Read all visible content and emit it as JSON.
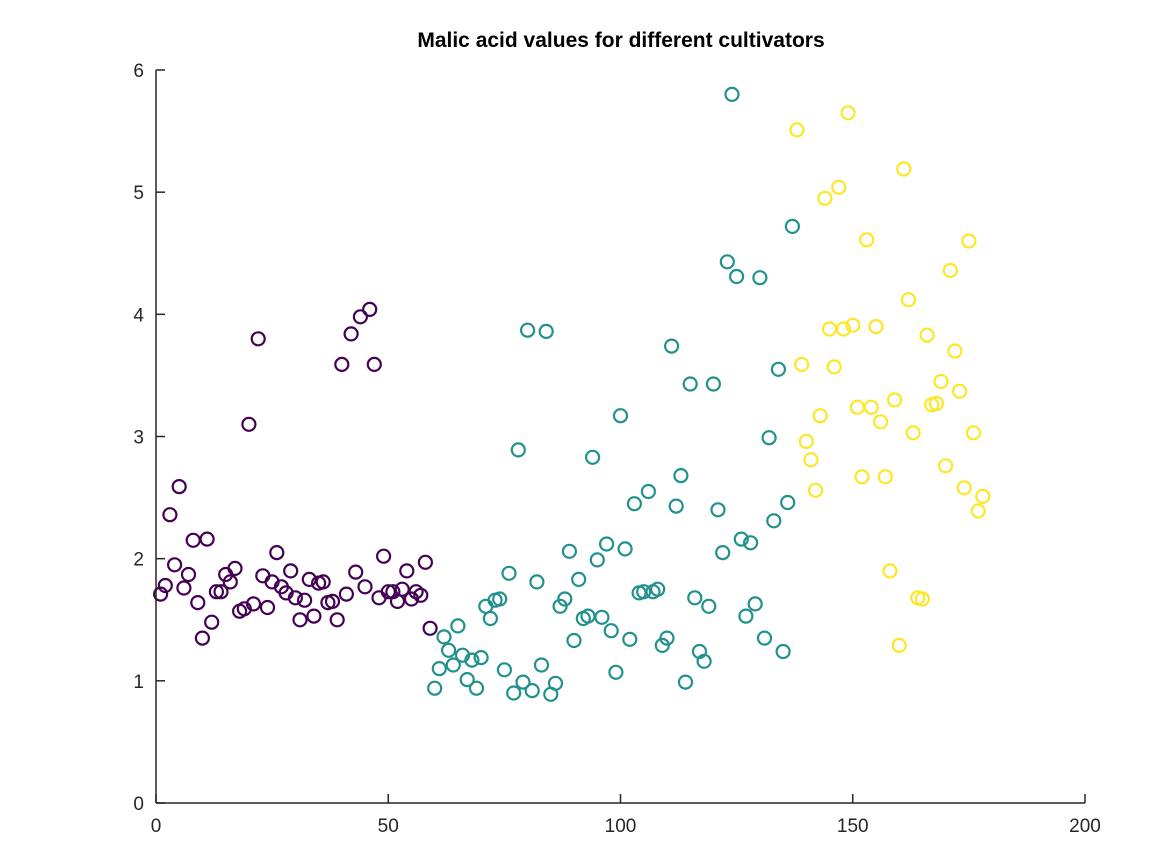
{
  "chart_data": {
    "type": "scatter",
    "title": "Malic acid values for different cultivators",
    "xlabel": "",
    "ylabel": "",
    "xlim": [
      0,
      200
    ],
    "ylim": [
      0,
      6
    ],
    "x_ticks": [
      "0",
      "50",
      "100",
      "150",
      "200"
    ],
    "y_ticks": [
      "0",
      "1",
      "2",
      "3",
      "4",
      "5",
      "6"
    ],
    "grid": false,
    "legend": "none",
    "marker": "open-circle",
    "colors": {
      "1": "#440154",
      "2": "#21918c",
      "3": "#fde725"
    },
    "points": [
      [
        1,
        1.71,
        1
      ],
      [
        2,
        1.78,
        1
      ],
      [
        3,
        2.36,
        1
      ],
      [
        4,
        1.95,
        1
      ],
      [
        5,
        2.59,
        1
      ],
      [
        6,
        1.76,
        1
      ],
      [
        7,
        1.87,
        1
      ],
      [
        8,
        2.15,
        1
      ],
      [
        9,
        1.64,
        1
      ],
      [
        10,
        1.35,
        1
      ],
      [
        11,
        2.16,
        1
      ],
      [
        12,
        1.48,
        1
      ],
      [
        13,
        1.73,
        1
      ],
      [
        14,
        1.73,
        1
      ],
      [
        15,
        1.87,
        1
      ],
      [
        16,
        1.81,
        1
      ],
      [
        17,
        1.92,
        1
      ],
      [
        18,
        1.57,
        1
      ],
      [
        19,
        1.59,
        1
      ],
      [
        20,
        3.1,
        1
      ],
      [
        21,
        1.63,
        1
      ],
      [
        22,
        3.8,
        1
      ],
      [
        23,
        1.86,
        1
      ],
      [
        24,
        1.6,
        1
      ],
      [
        25,
        1.81,
        1
      ],
      [
        26,
        2.05,
        1
      ],
      [
        27,
        1.77,
        1
      ],
      [
        28,
        1.72,
        1
      ],
      [
        29,
        1.9,
        1
      ],
      [
        30,
        1.68,
        1
      ],
      [
        31,
        1.5,
        1
      ],
      [
        32,
        1.66,
        1
      ],
      [
        33,
        1.83,
        1
      ],
      [
        34,
        1.53,
        1
      ],
      [
        35,
        1.8,
        1
      ],
      [
        36,
        1.81,
        1
      ],
      [
        37,
        1.64,
        1
      ],
      [
        38,
        1.65,
        1
      ],
      [
        39,
        1.5,
        1
      ],
      [
        40,
        3.59,
        1
      ],
      [
        41,
        1.71,
        1
      ],
      [
        42,
        3.84,
        1
      ],
      [
        43,
        1.89,
        1
      ],
      [
        44,
        3.98,
        1
      ],
      [
        45,
        1.77,
        1
      ],
      [
        46,
        4.04,
        1
      ],
      [
        47,
        3.59,
        1
      ],
      [
        48,
        1.68,
        1
      ],
      [
        49,
        2.02,
        1
      ],
      [
        50,
        1.73,
        1
      ],
      [
        51,
        1.73,
        1
      ],
      [
        52,
        1.65,
        1
      ],
      [
        53,
        1.75,
        1
      ],
      [
        54,
        1.9,
        1
      ],
      [
        55,
        1.67,
        1
      ],
      [
        56,
        1.73,
        1
      ],
      [
        57,
        1.7,
        1
      ],
      [
        58,
        1.97,
        1
      ],
      [
        59,
        1.43,
        1
      ],
      [
        60,
        0.94,
        2
      ],
      [
        61,
        1.1,
        2
      ],
      [
        62,
        1.36,
        2
      ],
      [
        63,
        1.25,
        2
      ],
      [
        64,
        1.13,
        2
      ],
      [
        65,
        1.45,
        2
      ],
      [
        66,
        1.21,
        2
      ],
      [
        67,
        1.01,
        2
      ],
      [
        68,
        1.17,
        2
      ],
      [
        69,
        0.94,
        2
      ],
      [
        70,
        1.19,
        2
      ],
      [
        71,
        1.61,
        2
      ],
      [
        72,
        1.51,
        2
      ],
      [
        73,
        1.66,
        2
      ],
      [
        74,
        1.67,
        2
      ],
      [
        75,
        1.09,
        2
      ],
      [
        76,
        1.88,
        2
      ],
      [
        77,
        0.9,
        2
      ],
      [
        78,
        2.89,
        2
      ],
      [
        79,
        0.99,
        2
      ],
      [
        80,
        3.87,
        2
      ],
      [
        81,
        0.92,
        2
      ],
      [
        82,
        1.81,
        2
      ],
      [
        83,
        1.13,
        2
      ],
      [
        84,
        3.86,
        2
      ],
      [
        85,
        0.89,
        2
      ],
      [
        86,
        0.98,
        2
      ],
      [
        87,
        1.61,
        2
      ],
      [
        88,
        1.67,
        2
      ],
      [
        89,
        2.06,
        2
      ],
      [
        90,
        1.33,
        2
      ],
      [
        91,
        1.83,
        2
      ],
      [
        92,
        1.51,
        2
      ],
      [
        93,
        1.53,
        2
      ],
      [
        94,
        2.83,
        2
      ],
      [
        95,
        1.99,
        2
      ],
      [
        96,
        1.52,
        2
      ],
      [
        97,
        2.12,
        2
      ],
      [
        98,
        1.41,
        2
      ],
      [
        99,
        1.07,
        2
      ],
      [
        100,
        3.17,
        2
      ],
      [
        101,
        2.08,
        2
      ],
      [
        102,
        1.34,
        2
      ],
      [
        103,
        2.45,
        2
      ],
      [
        104,
        1.72,
        2
      ],
      [
        105,
        1.73,
        2
      ],
      [
        106,
        2.55,
        2
      ],
      [
        107,
        1.73,
        2
      ],
      [
        108,
        1.75,
        2
      ],
      [
        109,
        1.29,
        2
      ],
      [
        110,
        1.35,
        2
      ],
      [
        111,
        3.74,
        2
      ],
      [
        112,
        2.43,
        2
      ],
      [
        113,
        2.68,
        2
      ],
      [
        114,
        0.99,
        2
      ],
      [
        115,
        3.43,
        2
      ],
      [
        116,
        1.68,
        2
      ],
      [
        117,
        1.24,
        2
      ],
      [
        118,
        1.16,
        2
      ],
      [
        119,
        1.61,
        2
      ],
      [
        120,
        3.43,
        2
      ],
      [
        121,
        2.4,
        2
      ],
      [
        122,
        2.05,
        2
      ],
      [
        123,
        4.43,
        2
      ],
      [
        124,
        5.8,
        2
      ],
      [
        125,
        4.31,
        2
      ],
      [
        126,
        2.16,
        2
      ],
      [
        127,
        1.53,
        2
      ],
      [
        128,
        2.13,
        2
      ],
      [
        129,
        1.63,
        2
      ],
      [
        130,
        4.3,
        2
      ],
      [
        131,
        1.35,
        2
      ],
      [
        132,
        2.99,
        2
      ],
      [
        133,
        2.31,
        2
      ],
      [
        134,
        3.55,
        2
      ],
      [
        135,
        1.24,
        2
      ],
      [
        136,
        2.46,
        2
      ],
      [
        137,
        4.72,
        2
      ],
      [
        138,
        5.51,
        3
      ],
      [
        139,
        3.59,
        3
      ],
      [
        140,
        2.96,
        3
      ],
      [
        141,
        2.81,
        3
      ],
      [
        142,
        2.56,
        3
      ],
      [
        143,
        3.17,
        3
      ],
      [
        144,
        4.95,
        3
      ],
      [
        145,
        3.88,
        3
      ],
      [
        146,
        3.57,
        3
      ],
      [
        147,
        5.04,
        3
      ],
      [
        148,
        3.88,
        3
      ],
      [
        149,
        5.65,
        3
      ],
      [
        150,
        3.91,
        3
      ],
      [
        151,
        3.24,
        3
      ],
      [
        152,
        2.67,
        3
      ],
      [
        153,
        4.61,
        3
      ],
      [
        154,
        3.24,
        3
      ],
      [
        155,
        3.9,
        3
      ],
      [
        156,
        3.12,
        3
      ],
      [
        157,
        2.67,
        3
      ],
      [
        158,
        1.9,
        3
      ],
      [
        159,
        3.3,
        3
      ],
      [
        160,
        1.29,
        3
      ],
      [
        161,
        5.19,
        3
      ],
      [
        162,
        4.12,
        3
      ],
      [
        163,
        3.03,
        3
      ],
      [
        164,
        1.68,
        3
      ],
      [
        165,
        1.67,
        3
      ],
      [
        166,
        3.83,
        3
      ],
      [
        167,
        3.26,
        3
      ],
      [
        168,
        3.27,
        3
      ],
      [
        169,
        3.45,
        3
      ],
      [
        170,
        2.76,
        3
      ],
      [
        171,
        4.36,
        3
      ],
      [
        172,
        3.7,
        3
      ],
      [
        173,
        3.37,
        3
      ],
      [
        174,
        2.58,
        3
      ],
      [
        175,
        4.6,
        3
      ],
      [
        176,
        3.03,
        3
      ],
      [
        177,
        2.39,
        3
      ],
      [
        178,
        2.51,
        3
      ]
    ]
  }
}
